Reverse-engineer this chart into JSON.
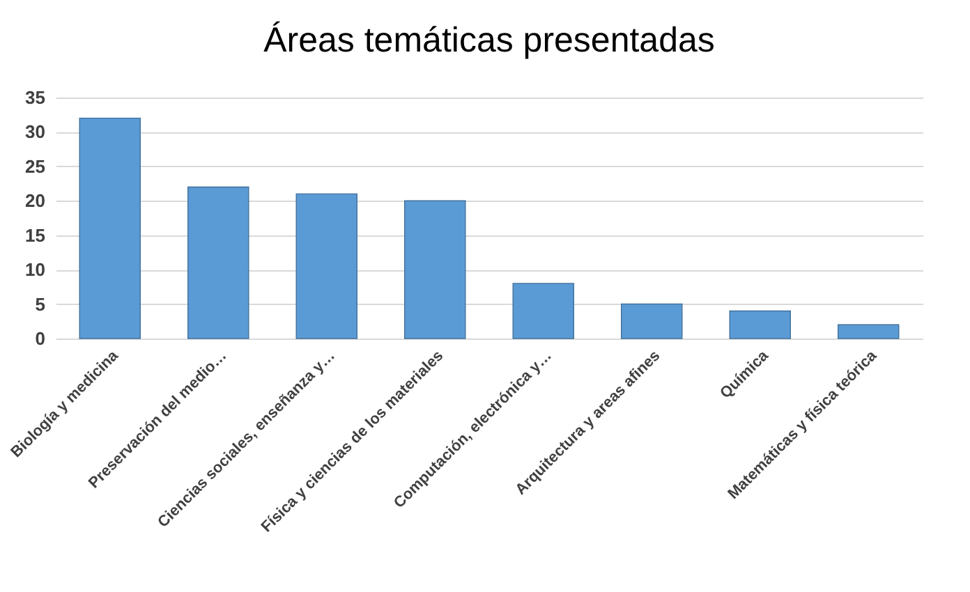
{
  "chart_data": {
    "type": "bar",
    "title": "Áreas temáticas presentadas",
    "categories": [
      "Biología y medicina",
      "Preservación del medio…",
      "Ciencias sociales, enseñanza y…",
      "Física y ciencias de los materiales",
      "Computación, electrónica y…",
      "Arquitectura y areas afines",
      "Química",
      "Matemáticas y física teórica"
    ],
    "values": [
      32,
      22,
      21,
      20,
      8,
      5,
      4,
      2
    ],
    "color": "#5b9bd5",
    "ylim": [
      0,
      35
    ],
    "yticks": [
      0,
      5,
      10,
      15,
      20,
      25,
      30,
      35
    ],
    "grid": "y"
  }
}
